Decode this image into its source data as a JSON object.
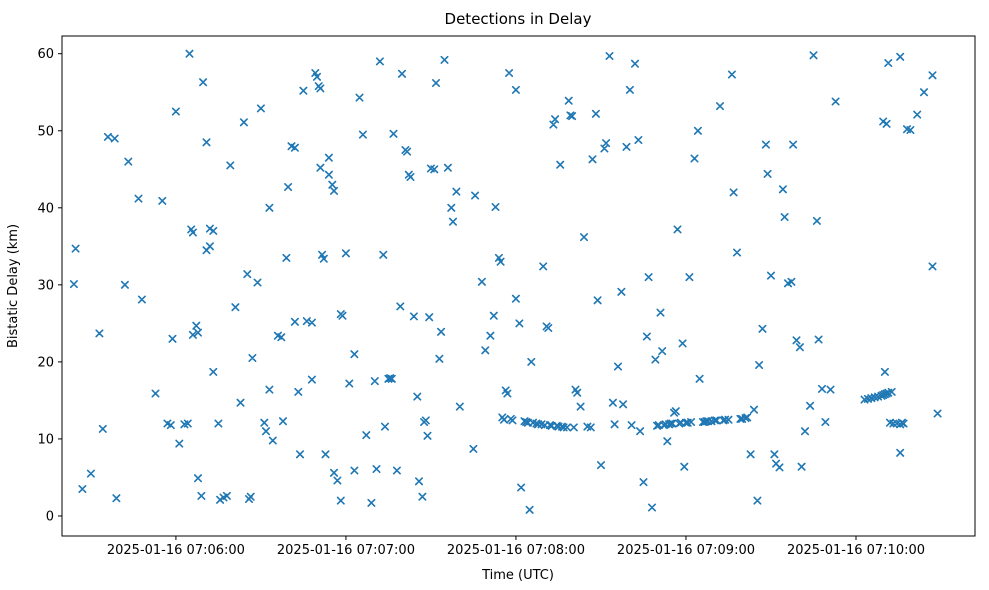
{
  "figure": {
    "background_color": "#ffffff",
    "axes_edge_color": "#000000"
  },
  "chart_data": {
    "type": "scatter",
    "title": "Detections in Delay",
    "xlabel": "Time (UTC)",
    "ylabel": "Bistatic Delay (km)",
    "marker": "x",
    "marker_color": "#1f77b4",
    "grid": false,
    "legend": "none",
    "x_encoding": "minutes after 2025-01-16 07:05:00 UTC",
    "xlim": [
      0.33,
      5.7
    ],
    "ylim": [
      -2.6,
      62.3
    ],
    "x_ticks": [
      {
        "value": 1,
        "label": "2025-01-16 07:06:00"
      },
      {
        "value": 2,
        "label": "2025-01-16 07:07:00"
      },
      {
        "value": 3,
        "label": "2025-01-16 07:08:00"
      },
      {
        "value": 4,
        "label": "2025-01-16 07:09:00"
      },
      {
        "value": 5,
        "label": "2025-01-16 07:10:00"
      }
    ],
    "y_ticks": [
      {
        "value": 0,
        "label": "0"
      },
      {
        "value": 10,
        "label": "10"
      },
      {
        "value": 20,
        "label": "20"
      },
      {
        "value": 30,
        "label": "30"
      },
      {
        "value": 40,
        "label": "40"
      },
      {
        "value": 50,
        "label": "50"
      },
      {
        "value": 60,
        "label": "60"
      }
    ],
    "points": [
      [
        0.4,
        30.1
      ],
      [
        0.41,
        34.7
      ],
      [
        0.45,
        3.5
      ],
      [
        0.5,
        5.5
      ],
      [
        0.55,
        23.7
      ],
      [
        0.57,
        11.3
      ],
      [
        0.6,
        49.2
      ],
      [
        0.64,
        49.0
      ],
      [
        0.65,
        2.3
      ],
      [
        0.7,
        30.0
      ],
      [
        0.72,
        46.0
      ],
      [
        0.78,
        41.2
      ],
      [
        0.8,
        28.1
      ],
      [
        0.88,
        15.9
      ],
      [
        0.92,
        40.9
      ],
      [
        0.95,
        12.0
      ],
      [
        0.97,
        11.8
      ],
      [
        0.98,
        23.0
      ],
      [
        1.0,
        52.5
      ],
      [
        1.02,
        9.4
      ],
      [
        1.05,
        11.9
      ],
      [
        1.07,
        12.0
      ],
      [
        1.08,
        60.0
      ],
      [
        1.09,
        37.2
      ],
      [
        1.1,
        36.8
      ],
      [
        1.1,
        23.5
      ],
      [
        1.12,
        24.7
      ],
      [
        1.13,
        23.8
      ],
      [
        1.13,
        4.9
      ],
      [
        1.15,
        2.6
      ],
      [
        1.16,
        56.3
      ],
      [
        1.18,
        48.5
      ],
      [
        1.18,
        34.5
      ],
      [
        1.2,
        35.0
      ],
      [
        1.2,
        37.3
      ],
      [
        1.22,
        37.0
      ],
      [
        1.22,
        18.7
      ],
      [
        1.25,
        12.0
      ],
      [
        1.26,
        2.1
      ],
      [
        1.28,
        2.4
      ],
      [
        1.3,
        2.6
      ],
      [
        1.32,
        45.5
      ],
      [
        1.35,
        27.1
      ],
      [
        1.38,
        14.7
      ],
      [
        1.4,
        51.1
      ],
      [
        1.42,
        31.4
      ],
      [
        1.43,
        2.2
      ],
      [
        1.44,
        2.5
      ],
      [
        1.45,
        20.5
      ],
      [
        1.48,
        30.3
      ],
      [
        1.5,
        52.9
      ],
      [
        1.52,
        12.1
      ],
      [
        1.53,
        11.0
      ],
      [
        1.55,
        40.0
      ],
      [
        1.55,
        16.4
      ],
      [
        1.57,
        9.8
      ],
      [
        1.6,
        23.4
      ],
      [
        1.62,
        23.2
      ],
      [
        1.63,
        12.3
      ],
      [
        1.65,
        33.5
      ],
      [
        1.66,
        42.7
      ],
      [
        1.68,
        48.0
      ],
      [
        1.7,
        47.8
      ],
      [
        1.7,
        25.2
      ],
      [
        1.72,
        16.1
      ],
      [
        1.73,
        8.0
      ],
      [
        1.75,
        55.2
      ],
      [
        1.77,
        25.3
      ],
      [
        1.8,
        25.1
      ],
      [
        1.8,
        17.7
      ],
      [
        1.82,
        57.5
      ],
      [
        1.83,
        57.0
      ],
      [
        1.84,
        55.8
      ],
      [
        1.85,
        55.5
      ],
      [
        1.85,
        45.2
      ],
      [
        1.86,
        33.9
      ],
      [
        1.87,
        33.4
      ],
      [
        1.88,
        8.0
      ],
      [
        1.9,
        46.5
      ],
      [
        1.9,
        44.3
      ],
      [
        1.92,
        43.0
      ],
      [
        1.93,
        42.2
      ],
      [
        1.93,
        5.6
      ],
      [
        1.95,
        4.6
      ],
      [
        1.97,
        2.0
      ],
      [
        1.97,
        26.2
      ],
      [
        1.98,
        26.0
      ],
      [
        2.0,
        34.1
      ],
      [
        2.02,
        17.2
      ],
      [
        2.05,
        21.0
      ],
      [
        2.05,
        5.9
      ],
      [
        2.08,
        54.3
      ],
      [
        2.1,
        49.5
      ],
      [
        2.12,
        10.5
      ],
      [
        2.15,
        1.7
      ],
      [
        2.17,
        17.5
      ],
      [
        2.18,
        6.1
      ],
      [
        2.2,
        59.0
      ],
      [
        2.22,
        33.9
      ],
      [
        2.23,
        11.6
      ],
      [
        2.25,
        17.8
      ],
      [
        2.26,
        17.9
      ],
      [
        2.27,
        17.8
      ],
      [
        2.28,
        49.6
      ],
      [
        2.3,
        5.9
      ],
      [
        2.32,
        27.2
      ],
      [
        2.33,
        57.4
      ],
      [
        2.35,
        47.5
      ],
      [
        2.36,
        47.3
      ],
      [
        2.37,
        44.3
      ],
      [
        2.38,
        44.0
      ],
      [
        2.4,
        25.9
      ],
      [
        2.42,
        15.5
      ],
      [
        2.43,
        4.5
      ],
      [
        2.45,
        2.5
      ],
      [
        2.46,
        12.2
      ],
      [
        2.47,
        12.4
      ],
      [
        2.48,
        10.4
      ],
      [
        2.49,
        25.8
      ],
      [
        2.5,
        45.1
      ],
      [
        2.52,
        45.0
      ],
      [
        2.53,
        56.2
      ],
      [
        2.55,
        20.4
      ],
      [
        2.56,
        23.9
      ],
      [
        2.58,
        59.2
      ],
      [
        2.6,
        45.2
      ],
      [
        2.62,
        40.0
      ],
      [
        2.63,
        38.2
      ],
      [
        2.65,
        42.1
      ],
      [
        2.67,
        14.2
      ],
      [
        2.75,
        8.7
      ],
      [
        2.76,
        41.6
      ],
      [
        2.8,
        30.4
      ],
      [
        2.82,
        21.5
      ],
      [
        2.85,
        23.4
      ],
      [
        2.87,
        26.0
      ],
      [
        2.88,
        40.1
      ],
      [
        2.9,
        33.5
      ],
      [
        2.91,
        33.0
      ],
      [
        2.92,
        12.8
      ],
      [
        2.93,
        12.5
      ],
      [
        2.94,
        16.3
      ],
      [
        2.95,
        15.9
      ],
      [
        2.96,
        57.5
      ],
      [
        2.97,
        12.6
      ],
      [
        2.98,
        12.4
      ],
      [
        3.0,
        55.3
      ],
      [
        3.0,
        28.2
      ],
      [
        3.02,
        25.0
      ],
      [
        3.03,
        3.7
      ],
      [
        3.05,
        12.3
      ],
      [
        3.06,
        12.2
      ],
      [
        3.07,
        12.1
      ],
      [
        3.08,
        0.8
      ],
      [
        3.09,
        20.0
      ],
      [
        3.1,
        12.1
      ],
      [
        3.12,
        12.0
      ],
      [
        3.13,
        11.9
      ],
      [
        3.15,
        11.9
      ],
      [
        3.16,
        32.4
      ],
      [
        3.17,
        11.8
      ],
      [
        3.18,
        24.6
      ],
      [
        3.19,
        24.4
      ],
      [
        3.2,
        11.8
      ],
      [
        3.21,
        11.7
      ],
      [
        3.22,
        50.8
      ],
      [
        3.23,
        51.5
      ],
      [
        3.24,
        11.7
      ],
      [
        3.25,
        11.6
      ],
      [
        3.26,
        45.6
      ],
      [
        3.27,
        11.6
      ],
      [
        3.28,
        11.5
      ],
      [
        3.3,
        11.5
      ],
      [
        3.31,
        53.9
      ],
      [
        3.32,
        52.0
      ],
      [
        3.33,
        51.9
      ],
      [
        3.34,
        11.5
      ],
      [
        3.35,
        16.4
      ],
      [
        3.36,
        16.0
      ],
      [
        3.38,
        14.2
      ],
      [
        3.4,
        36.2
      ],
      [
        3.42,
        11.6
      ],
      [
        3.44,
        11.5
      ],
      [
        3.45,
        46.3
      ],
      [
        3.47,
        52.2
      ],
      [
        3.48,
        28.0
      ],
      [
        3.5,
        6.6
      ],
      [
        3.52,
        47.7
      ],
      [
        3.53,
        48.4
      ],
      [
        3.55,
        59.7
      ],
      [
        3.57,
        14.7
      ],
      [
        3.58,
        11.9
      ],
      [
        3.6,
        19.4
      ],
      [
        3.62,
        29.1
      ],
      [
        3.63,
        14.5
      ],
      [
        3.65,
        47.9
      ],
      [
        3.67,
        55.3
      ],
      [
        3.68,
        11.8
      ],
      [
        3.7,
        58.7
      ],
      [
        3.72,
        48.8
      ],
      [
        3.73,
        11.0
      ],
      [
        3.75,
        4.4
      ],
      [
        3.77,
        23.3
      ],
      [
        3.78,
        31.0
      ],
      [
        3.8,
        1.1
      ],
      [
        3.82,
        20.3
      ],
      [
        3.83,
        11.7
      ],
      [
        3.84,
        11.8
      ],
      [
        3.85,
        26.4
      ],
      [
        3.86,
        21.4
      ],
      [
        3.87,
        11.8
      ],
      [
        3.88,
        11.9
      ],
      [
        3.89,
        9.7
      ],
      [
        3.9,
        11.9
      ],
      [
        3.91,
        12.0
      ],
      [
        3.92,
        12.0
      ],
      [
        3.93,
        13.4
      ],
      [
        3.94,
        13.6
      ],
      [
        3.95,
        37.2
      ],
      [
        3.96,
        12.0
      ],
      [
        3.97,
        12.1
      ],
      [
        3.98,
        22.4
      ],
      [
        3.99,
        6.4
      ],
      [
        4.0,
        12.1
      ],
      [
        4.01,
        12.1
      ],
      [
        4.02,
        31.0
      ],
      [
        4.03,
        12.2
      ],
      [
        4.05,
        46.4
      ],
      [
        4.07,
        50.0
      ],
      [
        4.08,
        17.8
      ],
      [
        4.1,
        12.2
      ],
      [
        4.11,
        12.2
      ],
      [
        4.12,
        12.3
      ],
      [
        4.13,
        12.3
      ],
      [
        4.15,
        12.3
      ],
      [
        4.17,
        12.4
      ],
      [
        4.18,
        12.4
      ],
      [
        4.2,
        53.2
      ],
      [
        4.22,
        12.4
      ],
      [
        4.23,
        12.5
      ],
      [
        4.25,
        12.5
      ],
      [
        4.27,
        57.3
      ],
      [
        4.28,
        42.0
      ],
      [
        4.3,
        34.2
      ],
      [
        4.32,
        12.6
      ],
      [
        4.33,
        12.6
      ],
      [
        4.35,
        12.7
      ],
      [
        4.36,
        12.8
      ],
      [
        4.38,
        8.0
      ],
      [
        4.4,
        13.8
      ],
      [
        4.42,
        2.0
      ],
      [
        4.43,
        19.6
      ],
      [
        4.45,
        24.3
      ],
      [
        4.47,
        48.2
      ],
      [
        4.48,
        44.4
      ],
      [
        4.5,
        31.2
      ],
      [
        4.52,
        8.0
      ],
      [
        4.53,
        6.8
      ],
      [
        4.55,
        6.3
      ],
      [
        4.57,
        42.4
      ],
      [
        4.58,
        38.8
      ],
      [
        4.6,
        30.2
      ],
      [
        4.62,
        30.4
      ],
      [
        4.63,
        48.2
      ],
      [
        4.65,
        22.8
      ],
      [
        4.67,
        21.9
      ],
      [
        4.68,
        6.4
      ],
      [
        4.7,
        11.0
      ],
      [
        4.73,
        14.3
      ],
      [
        4.75,
        59.8
      ],
      [
        4.77,
        38.3
      ],
      [
        4.78,
        22.9
      ],
      [
        4.8,
        16.5
      ],
      [
        4.82,
        12.2
      ],
      [
        4.85,
        16.4
      ],
      [
        4.88,
        53.8
      ],
      [
        5.05,
        15.1
      ],
      [
        5.07,
        15.2
      ],
      [
        5.09,
        15.3
      ],
      [
        5.11,
        15.4
      ],
      [
        5.13,
        15.5
      ],
      [
        5.15,
        15.6
      ],
      [
        5.16,
        15.7
      ],
      [
        5.17,
        15.8
      ],
      [
        5.18,
        15.9
      ],
      [
        5.19,
        16.0
      ],
      [
        5.21,
        16.1
      ],
      [
        5.17,
        18.7
      ],
      [
        5.19,
        58.8
      ],
      [
        5.26,
        59.6
      ],
      [
        5.16,
        51.2
      ],
      [
        5.18,
        50.9
      ],
      [
        5.2,
        12.1
      ],
      [
        5.22,
        12.0
      ],
      [
        5.24,
        12.0
      ],
      [
        5.26,
        11.9
      ],
      [
        5.27,
        12.1
      ],
      [
        5.28,
        12.0
      ],
      [
        5.26,
        8.2
      ],
      [
        5.3,
        50.2
      ],
      [
        5.32,
        50.1
      ],
      [
        5.36,
        52.1
      ],
      [
        5.4,
        55.0
      ],
      [
        5.45,
        57.2
      ],
      [
        5.45,
        32.4
      ],
      [
        5.48,
        13.3
      ]
    ]
  }
}
